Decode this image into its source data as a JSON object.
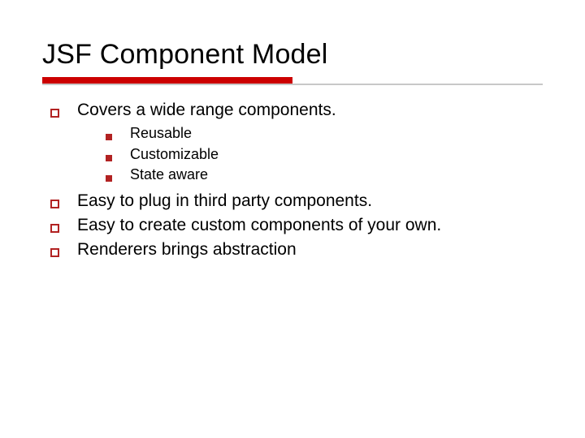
{
  "title": "JSF Component Model",
  "rule": {
    "red_color": "#cc0000",
    "gray_color": "#c8c8c8"
  },
  "bullets": {
    "l1_border_color": "#b22222",
    "l2_fill_color": "#b22222"
  },
  "typography": {
    "title_fontsize": 34,
    "l1_fontsize": 21,
    "l2_fontsize": 18,
    "font_family": "Verdana"
  },
  "background_color": "#ffffff",
  "items": [
    {
      "text": "Covers a wide range components.",
      "sub": [
        {
          "text": "Reusable"
        },
        {
          "text": "Customizable"
        },
        {
          "text": "State aware"
        }
      ]
    },
    {
      "text": "Easy to plug in third party components.",
      "sub": []
    },
    {
      "text": "Easy to create custom components of your own.",
      "sub": []
    },
    {
      "text": "Renderers brings abstraction",
      "sub": []
    }
  ]
}
